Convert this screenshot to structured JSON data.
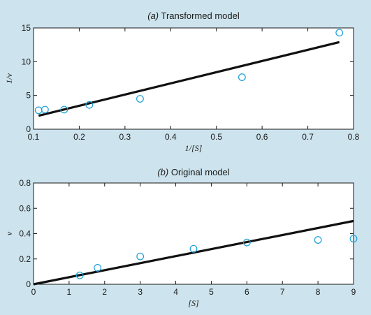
{
  "colors": {
    "background": "#cde3ed",
    "plot_area": "#ffffff",
    "axis": "#1a1a1a",
    "fit_line": "#111111",
    "markers": "#1aa0d8"
  },
  "chart_data": [
    {
      "type": "scatter",
      "title_tag": "(a)",
      "title_rest": "Transformed model",
      "title": "(a) Transformed model",
      "xlabel": "1/[S]",
      "ylabel": "1/v",
      "xlim": [
        0.1,
        0.8
      ],
      "ylim": [
        0,
        15
      ],
      "xticks": [
        0.1,
        0.2,
        0.3,
        0.4,
        0.5,
        0.6,
        0.7,
        0.8
      ],
      "xtick_labels": [
        "0.1",
        "0.2",
        "0.3",
        "0.4",
        "0.5",
        "0.6",
        "0.7",
        "0.8"
      ],
      "yticks": [
        0,
        5,
        10,
        15
      ],
      "ytick_labels": [
        "0",
        "5",
        "10",
        "15"
      ],
      "grid": false,
      "points": [
        {
          "x": 0.111,
          "y": 2.8
        },
        {
          "x": 0.125,
          "y": 2.9
        },
        {
          "x": 0.167,
          "y": 2.9
        },
        {
          "x": 0.222,
          "y": 3.6
        },
        {
          "x": 0.333,
          "y": 4.5
        },
        {
          "x": 0.556,
          "y": 7.7
        },
        {
          "x": 0.769,
          "y": 14.3
        }
      ],
      "fit_line": [
        {
          "x": 0.111,
          "y": 2.0
        },
        {
          "x": 0.769,
          "y": 12.9
        }
      ]
    },
    {
      "type": "scatter",
      "title_tag": "(b)",
      "title_rest": "Original model",
      "title": "(b) Original model",
      "xlabel": "[S]",
      "ylabel": "v",
      "xlim": [
        0,
        9
      ],
      "ylim": [
        0,
        0.8
      ],
      "xticks": [
        0,
        1,
        2,
        3,
        4,
        5,
        6,
        7,
        8,
        9
      ],
      "xtick_labels": [
        "0",
        "1",
        "2",
        "3",
        "4",
        "5",
        "6",
        "7",
        "8",
        "9"
      ],
      "yticks": [
        0,
        0.2,
        0.4,
        0.6,
        0.8
      ],
      "ytick_labels": [
        "0",
        "0.2",
        "0.4",
        "0.6",
        "0.8"
      ],
      "grid": false,
      "points": [
        {
          "x": 1.3,
          "y": 0.07
        },
        {
          "x": 1.8,
          "y": 0.13
        },
        {
          "x": 3.0,
          "y": 0.22
        },
        {
          "x": 4.5,
          "y": 0.28
        },
        {
          "x": 6.0,
          "y": 0.33
        },
        {
          "x": 8.0,
          "y": 0.35
        },
        {
          "x": 9.0,
          "y": 0.36
        }
      ],
      "fit_line": [
        {
          "x": 0,
          "y": 0.0
        },
        {
          "x": 9,
          "y": 0.5
        }
      ]
    }
  ]
}
